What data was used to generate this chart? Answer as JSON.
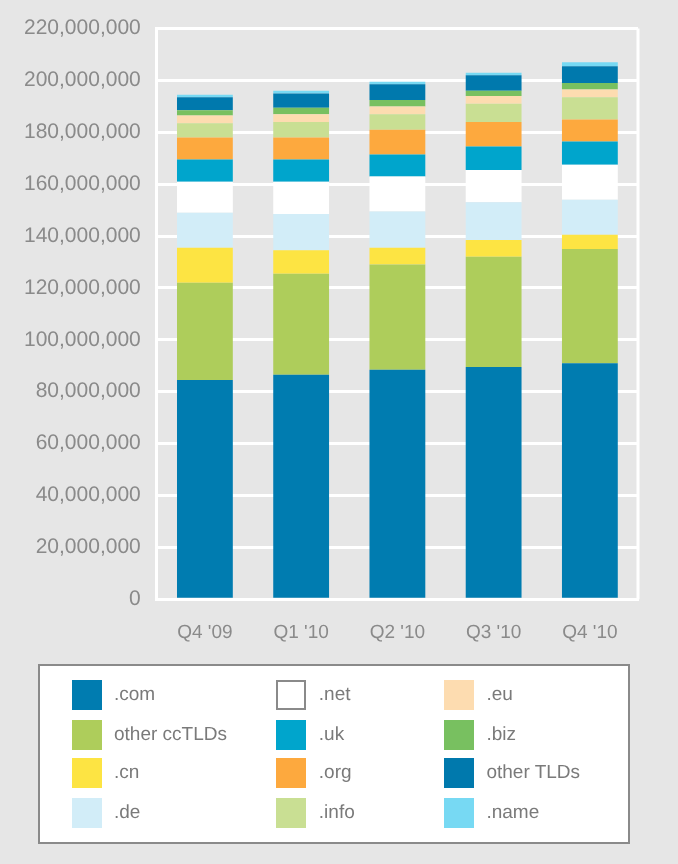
{
  "chart_data": {
    "type": "bar",
    "stacked": true,
    "categories": [
      "Q4 '09",
      "Q1 '10",
      "Q2 '10",
      "Q3 '10",
      "Q4 '10"
    ],
    "series": [
      {
        "name": ".com",
        "color": "#007cb0",
        "values": [
          84500000,
          86500000,
          88500000,
          89500000,
          91000000
        ]
      },
      {
        "name": "other ccTLDs",
        "color": "#aecd5b",
        "values": [
          37500000,
          39000000,
          40500000,
          42500000,
          44000000
        ]
      },
      {
        "name": ".cn",
        "color": "#fde443",
        "values": [
          13500000,
          9000000,
          6500000,
          6500000,
          5500000
        ]
      },
      {
        "name": ".de",
        "color": "#d2edf8",
        "values": [
          13500000,
          14000000,
          14000000,
          14500000,
          13500000
        ]
      },
      {
        "name": ".net",
        "color": "#ffffff",
        "values": [
          12000000,
          12500000,
          13500000,
          12500000,
          13500000
        ]
      },
      {
        "name": ".uk",
        "color": "#00a5cc",
        "values": [
          8500000,
          8500000,
          8500000,
          9000000,
          9000000
        ]
      },
      {
        "name": ".org",
        "color": "#fda93e",
        "values": [
          8500000,
          8500000,
          9500000,
          9500000,
          8500000
        ]
      },
      {
        "name": ".info",
        "color": "#c9df93",
        "values": [
          5500000,
          6000000,
          6000000,
          7000000,
          8500000
        ]
      },
      {
        "name": ".eu",
        "color": "#fddcb0",
        "values": [
          3000000,
          3000000,
          3000000,
          3000000,
          3000000
        ]
      },
      {
        "name": ".biz",
        "color": "#78c060",
        "values": [
          2000000,
          2500000,
          2500000,
          2000000,
          2500000
        ]
      },
      {
        "name": "other TLDs",
        "color": "#0079ad",
        "values": [
          5000000,
          5500000,
          6000000,
          6000000,
          6500000
        ]
      },
      {
        "name": ".name",
        "color": "#77d9f3",
        "values": [
          1000000,
          1000000,
          1000000,
          1000000,
          1500000
        ]
      }
    ],
    "ylim": [
      0,
      220000000
    ],
    "yticks": [
      0,
      {
        "value": 20000000,
        "label": "20,000,000"
      },
      {
        "value": 40000000,
        "label": "40,000,000"
      },
      {
        "value": 60000000,
        "label": "60,000,000"
      },
      {
        "value": 80000000,
        "label": "80,000,000"
      },
      {
        "value": 100000000,
        "label": "100,000,000"
      },
      {
        "value": 120000000,
        "label": "120,000,000"
      },
      {
        "value": 140000000,
        "label": "140,000,000"
      },
      {
        "value": 160000000,
        "label": "160,000,000"
      },
      {
        "value": 180000000,
        "label": "180,000,000"
      },
      {
        "value": 200000000,
        "label": "200,000,000"
      },
      {
        "value": 220000000,
        "label": "220,000,000"
      }
    ],
    "grid": "y",
    "legend": "bottom"
  }
}
